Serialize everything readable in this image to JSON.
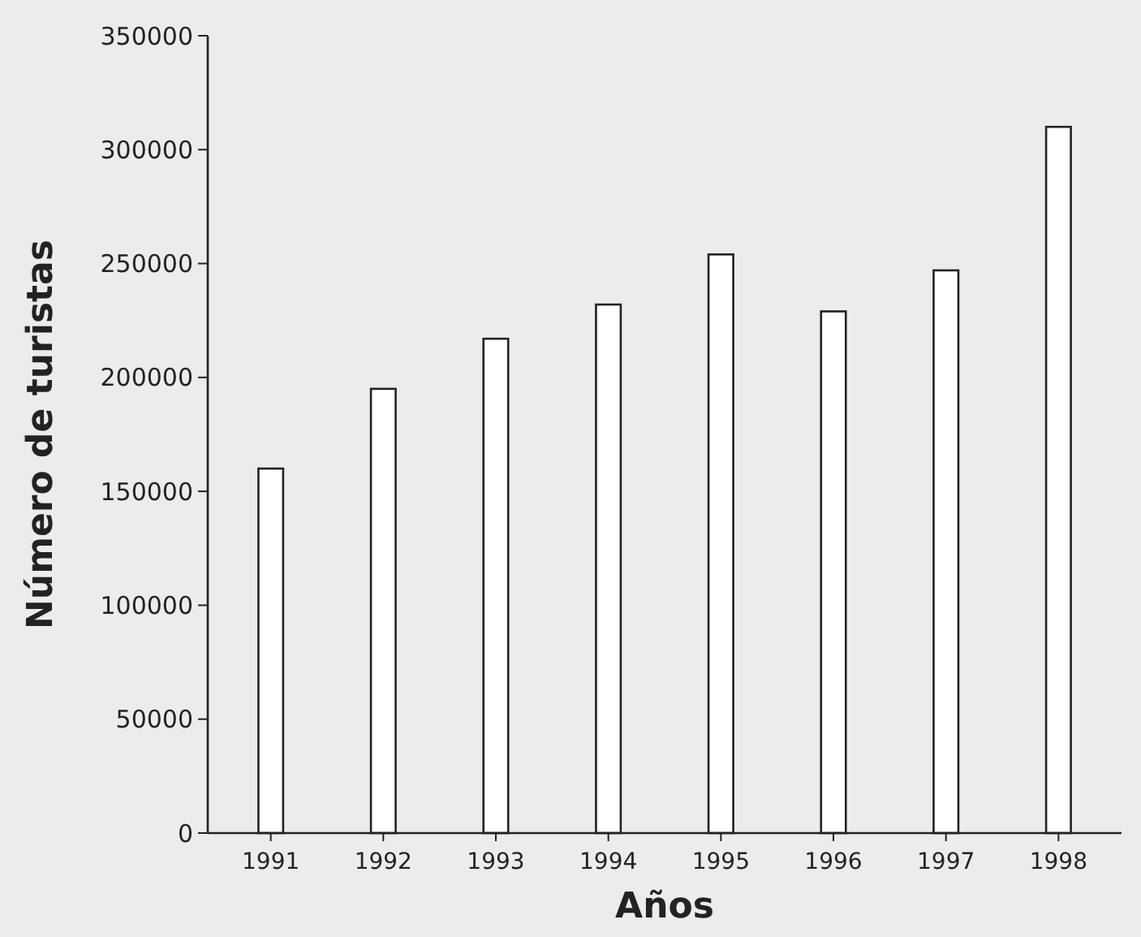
{
  "chart_data": {
    "type": "bar",
    "xlabel": "Años",
    "ylabel": "Número de turistas",
    "categories": [
      "1991",
      "1992",
      "1993",
      "1994",
      "1995",
      "1996",
      "1997",
      "1998"
    ],
    "values": [
      160000,
      195000,
      217000,
      232000,
      254000,
      229000,
      247000,
      310000
    ],
    "color": "#ffffff",
    "ylim": [
      0,
      350000
    ],
    "yticks": [
      0,
      50000,
      100000,
      150000,
      200000,
      250000,
      300000,
      350000
    ],
    "grid": false
  }
}
